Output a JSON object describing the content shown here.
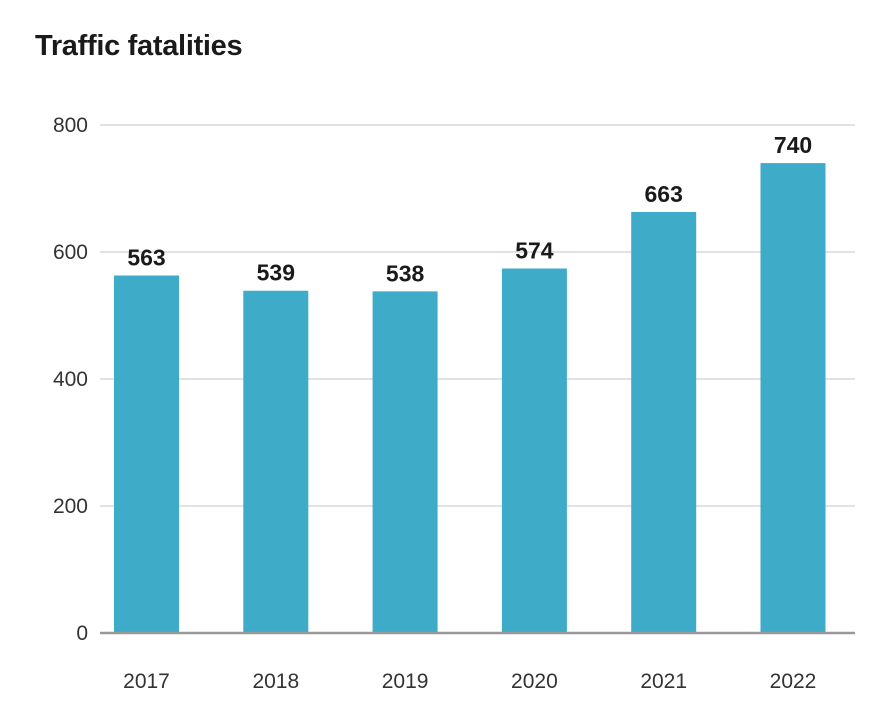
{
  "chart_data": {
    "type": "bar",
    "title": "Traffic fatalities",
    "xlabel": "",
    "ylabel": "",
    "categories": [
      "2017",
      "2018",
      "2019",
      "2020",
      "2021",
      "2022"
    ],
    "values": [
      563,
      539,
      538,
      574,
      663,
      740
    ],
    "data_labels": [
      "563",
      "539",
      "538",
      "574",
      "663",
      "740"
    ],
    "ylim": [
      0,
      800
    ],
    "yticks": [
      0,
      200,
      400,
      600,
      800
    ],
    "ytick_labels": [
      "0",
      "200",
      "400",
      "600",
      "800"
    ],
    "grid": true,
    "legend": "none",
    "colors": {
      "bar": "#3eabc8",
      "grid": "#d9d9d9",
      "baseline": "#999999"
    }
  }
}
